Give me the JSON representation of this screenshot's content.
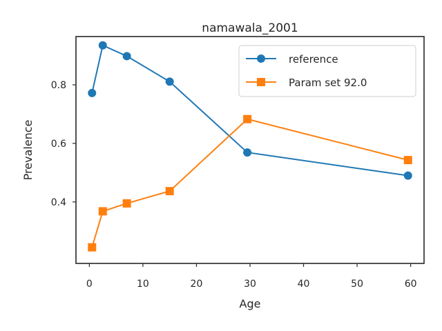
{
  "chart_data": {
    "type": "line",
    "title": "namawala_2001",
    "xlabel": "Age",
    "ylabel": "Prevalence",
    "xlim": [
      -2.5,
      62.5
    ],
    "ylim": [
      0.19,
      0.965
    ],
    "xticks": [
      0,
      10,
      20,
      30,
      40,
      50,
      60
    ],
    "yticks": [
      0.4,
      0.6,
      0.8
    ],
    "xtick_labels": [
      "0",
      "10",
      "20",
      "30",
      "40",
      "50",
      "60"
    ],
    "ytick_labels": [
      "0.4",
      "0.6",
      "0.8"
    ],
    "grid": false,
    "legend_position": "top-right",
    "series": [
      {
        "name": "reference",
        "color": "#1f77b4",
        "marker": "circle",
        "x": [
          0.5,
          2.5,
          7,
          15,
          29.5,
          59.5
        ],
        "y": [
          0.772,
          0.935,
          0.898,
          0.811,
          0.569,
          0.49
        ]
      },
      {
        "name": "Param set 92.0",
        "color": "#ff7f0e",
        "marker": "square",
        "x": [
          0.5,
          2.5,
          7,
          15,
          29.5,
          59.5
        ],
        "y": [
          0.245,
          0.368,
          0.395,
          0.437,
          0.683,
          0.543
        ]
      }
    ]
  }
}
